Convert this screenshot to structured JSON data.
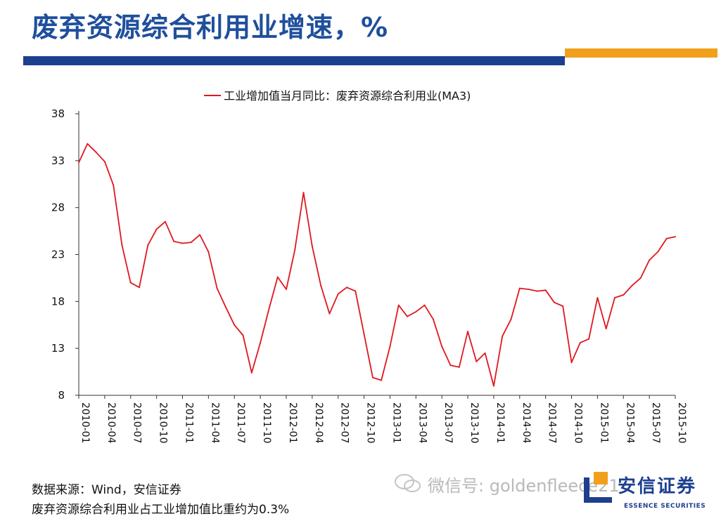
{
  "page": {
    "title": "废弃资源综合利用业增速，%",
    "source_note": "数据来源：Wind，安信证券",
    "weight_note": "废弃资源综合利用业占工业增加值比重约为0.3%",
    "watermark": "微信号: goldenfleece21",
    "logo_cn": "安信证券",
    "logo_en": "ESSENCE SECURITIES"
  },
  "colors": {
    "title": "#1f4f9c",
    "line": "#e0171f",
    "bar_blue": "#1d3f8f",
    "bar_orange": "#f2a01b"
  },
  "chart_data": {
    "type": "line",
    "title": "",
    "xlabel": "",
    "ylabel": "",
    "legend_position": "top-center",
    "grid": false,
    "ylim": [
      8,
      38
    ],
    "yticks": [
      "8",
      "13",
      "18",
      "23",
      "28",
      "33",
      "38"
    ],
    "x_tick_labels": [
      "2010-01",
      "2010-04",
      "2010-07",
      "2010-10",
      "2011-01",
      "2011-04",
      "2011-07",
      "2011-10",
      "2012-01",
      "2012-04",
      "2012-07",
      "2012-10",
      "2013-01",
      "2013-04",
      "2013-07",
      "2013-10",
      "2014-01",
      "2014-04",
      "2014-07",
      "2014-10",
      "2015-01",
      "2015-04",
      "2015-07",
      "2015-10"
    ],
    "series": [
      {
        "name": "工业增加值当月同比：废弃资源综合利用业(MA3)",
        "x": [
          "2010-01",
          "2010-02",
          "2010-03",
          "2010-04",
          "2010-05",
          "2010-06",
          "2010-07",
          "2010-08",
          "2010-09",
          "2010-10",
          "2010-11",
          "2010-12",
          "2011-01",
          "2011-02",
          "2011-03",
          "2011-04",
          "2011-05",
          "2011-06",
          "2011-07",
          "2011-08",
          "2011-09",
          "2011-10",
          "2011-11",
          "2011-12",
          "2012-01",
          "2012-02",
          "2012-03",
          "2012-04",
          "2012-05",
          "2012-06",
          "2012-07",
          "2012-08",
          "2012-09",
          "2012-10",
          "2012-11",
          "2012-12",
          "2013-01",
          "2013-02",
          "2013-03",
          "2013-04",
          "2013-05",
          "2013-06",
          "2013-07",
          "2013-08",
          "2013-09",
          "2013-10",
          "2013-11",
          "2013-12",
          "2014-01",
          "2014-02",
          "2014-03",
          "2014-04",
          "2014-05",
          "2014-06",
          "2014-07",
          "2014-08",
          "2014-09",
          "2014-10",
          "2014-11",
          "2014-12",
          "2015-01",
          "2015-02",
          "2015-03",
          "2015-04",
          "2015-05",
          "2015-06",
          "2015-07",
          "2015-08",
          "2015-09",
          "2015-10"
        ],
        "values": [
          32.8,
          34.8,
          33.9,
          32.9,
          30.4,
          24.0,
          20.0,
          19.5,
          24.0,
          25.7,
          26.5,
          24.4,
          24.2,
          24.3,
          25.1,
          23.3,
          19.4,
          17.4,
          15.5,
          14.4,
          10.4,
          13.6,
          17.2,
          20.6,
          19.3,
          23.5,
          29.6,
          23.9,
          19.7,
          16.7,
          18.8,
          19.5,
          19.1,
          14.5,
          9.9,
          9.6,
          13.2,
          17.6,
          16.4,
          16.9,
          17.6,
          16.1,
          13.2,
          11.2,
          11.0,
          14.8,
          11.6,
          12.5,
          9.0,
          14.3,
          16.1,
          19.4,
          19.3,
          19.1,
          19.2,
          17.9,
          17.5,
          11.5,
          13.6,
          14.0,
          18.4,
          15.1,
          18.4,
          18.7,
          19.7,
          20.5,
          22.4,
          23.3,
          24.7,
          24.9
        ]
      }
    ]
  }
}
